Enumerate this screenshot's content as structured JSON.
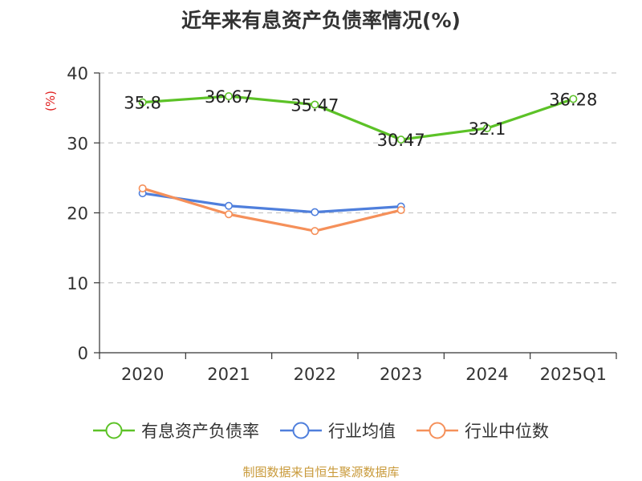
{
  "chart_data": {
    "type": "line",
    "title": "近年来有息资产负债率情况(%)",
    "ylabel": "(%)",
    "xlabel": "",
    "categories": [
      "2020",
      "2021",
      "2022",
      "2023",
      "2024",
      "2025Q1"
    ],
    "ylim": [
      0,
      40
    ],
    "yticks": [
      0,
      10,
      20,
      30,
      40
    ],
    "grid": "horizontal dashed",
    "legend": "bottom",
    "series": [
      {
        "name": "有息资产负债率",
        "color": "#5cc227",
        "values": [
          35.8,
          36.67,
          35.47,
          30.47,
          32.1,
          36.28
        ],
        "labels": [
          "35.8",
          "36.67",
          "35.47",
          "30.47",
          "32.1",
          "36.28"
        ]
      },
      {
        "name": "行业均值",
        "color": "#4f7fdc",
        "values": [
          22.8,
          21.0,
          20.1,
          20.9,
          null,
          null
        ]
      },
      {
        "name": "行业中位数",
        "color": "#f5905a",
        "values": [
          23.5,
          19.8,
          17.4,
          20.4,
          null,
          null
        ]
      }
    ]
  },
  "source": "制图数据来自恒生聚源数据库"
}
